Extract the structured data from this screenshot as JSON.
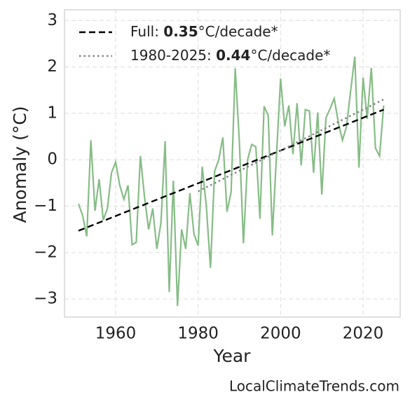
{
  "chart_data": {
    "type": "line",
    "x_label": "Year",
    "y_label": "Anomaly (°C)",
    "watermark": "LocalClimateTrends.com",
    "x": [
      1951,
      1952,
      1953,
      1954,
      1955,
      1956,
      1957,
      1958,
      1959,
      1960,
      1961,
      1962,
      1963,
      1964,
      1965,
      1966,
      1967,
      1968,
      1969,
      1970,
      1971,
      1972,
      1973,
      1974,
      1975,
      1976,
      1977,
      1978,
      1979,
      1980,
      1981,
      1982,
      1983,
      1984,
      1985,
      1986,
      1987,
      1988,
      1989,
      1990,
      1991,
      1992,
      1993,
      1994,
      1995,
      1996,
      1997,
      1998,
      1999,
      2000,
      2001,
      2002,
      2003,
      2004,
      2005,
      2006,
      2007,
      2008,
      2009,
      2010,
      2011,
      2012,
      2013,
      2014,
      2015,
      2016,
      2017,
      2018,
      2019,
      2020,
      2021,
      2022,
      2023,
      2024,
      2025
    ],
    "series": [
      {
        "color": "#86bc86",
        "style": "solid",
        "values": [
          -0.95,
          -1.2,
          -1.65,
          0.42,
          -1.1,
          -0.42,
          -1.3,
          -1.05,
          -0.28,
          -0.05,
          -0.55,
          -0.85,
          -0.55,
          -1.83,
          -1.78,
          0.08,
          -0.8,
          -1.5,
          -1.05,
          -1.92,
          -1.35,
          0.4,
          -2.85,
          -0.45,
          -3.15,
          -1.5,
          -1.92,
          -0.72,
          -1.6,
          -1.85,
          -0.15,
          -1.0,
          -2.33,
          -0.25,
          0.0,
          0.48,
          -1.12,
          -0.7,
          1.97,
          0.4,
          -1.8,
          0.0,
          0.33,
          0.28,
          -1.27,
          1.15,
          0.95,
          -1.63,
          0.08,
          1.75,
          0.72,
          1.17,
          0.12,
          1.22,
          -0.12,
          1.08,
          1.05,
          -0.28,
          1.02,
          -0.75,
          0.9,
          1.1,
          1.32,
          0.8,
          0.42,
          0.72,
          1.5,
          2.22,
          -0.17,
          1.77,
          0.88,
          1.98,
          0.25,
          0.08,
          1.17
        ]
      },
      {
        "color": "#000000",
        "style": "dashed",
        "x": [
          1951,
          2025
        ],
        "values": [
          -1.53,
          1.08
        ],
        "legend": {
          "prefix": "Full: ",
          "slope": 0.35,
          "suffix": "°C/decade*"
        }
      },
      {
        "color": "#808080",
        "style": "dotted",
        "x": [
          1980,
          2025
        ],
        "values": [
          -0.68,
          1.3
        ],
        "legend": {
          "prefix": "1980-2025: ",
          "slope": 0.44,
          "suffix": "°C/decade*"
        }
      }
    ],
    "xlim": [
      1947.6,
      2029
    ],
    "ylim": [
      -3.39,
      3.23
    ],
    "xticks": [
      1960,
      1980,
      2000,
      2020
    ],
    "yticks": [
      {
        "value": -3,
        "label": "−3"
      },
      {
        "value": -2,
        "label": "−2"
      },
      {
        "value": -1,
        "label": "−1"
      },
      0,
      1,
      2,
      3
    ],
    "grid": true,
    "legend_position": "upper-left"
  }
}
